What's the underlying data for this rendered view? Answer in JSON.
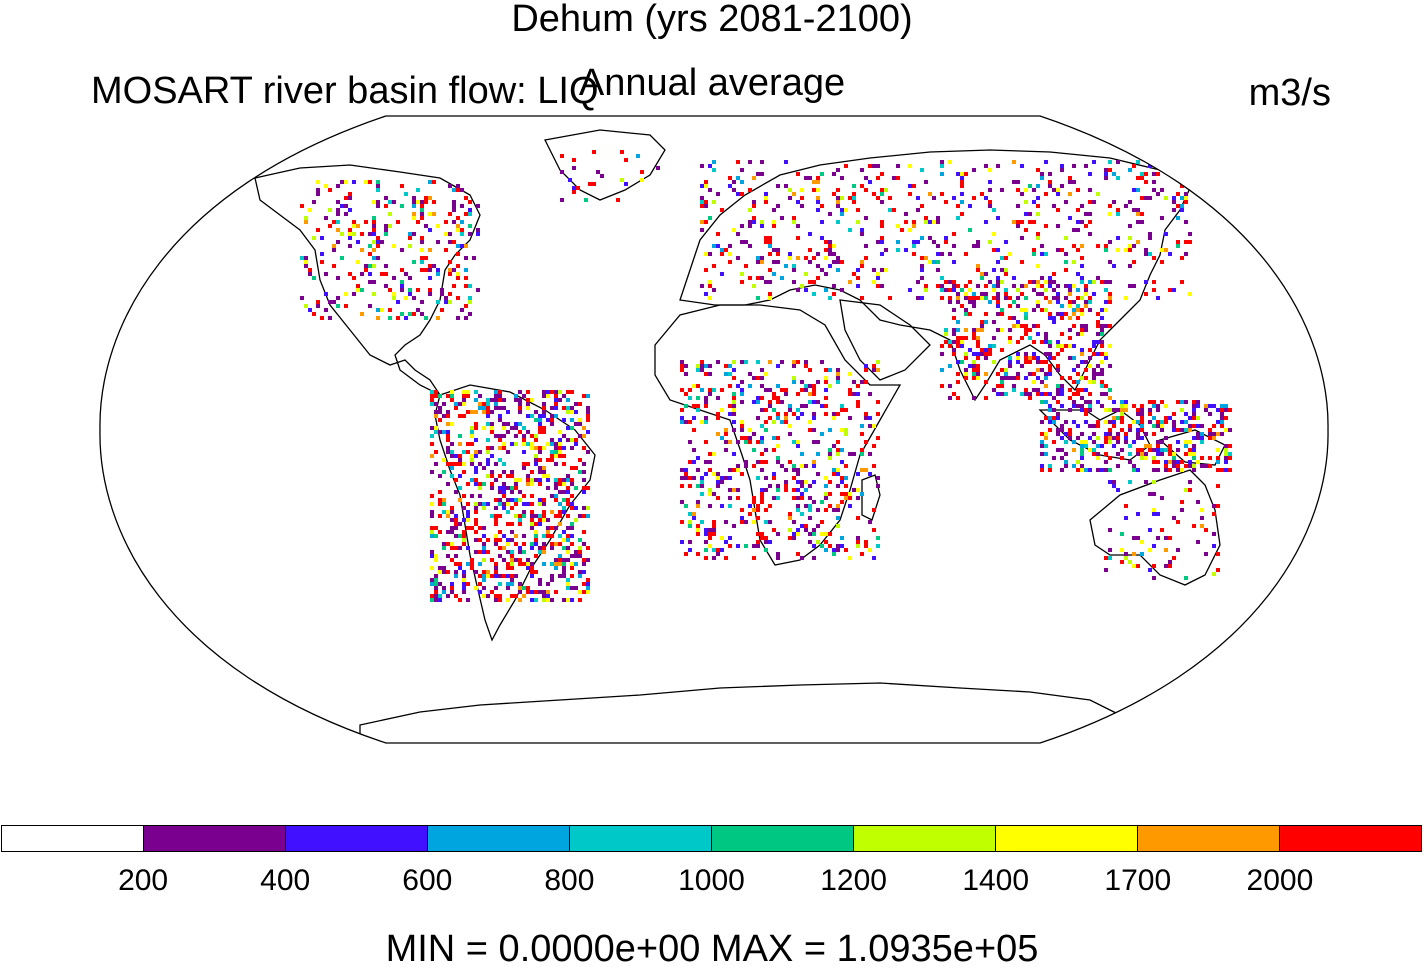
{
  "header": {
    "title": "Dehum (yrs 2081-2100)",
    "left_string": "MOSART river basin flow: LIQ",
    "center_string": "Annual average",
    "right_string": "m3/s"
  },
  "colorbar": {
    "colors": [
      "#ffffff",
      "#7a0090",
      "#4010ff",
      "#00a5e0",
      "#00c8c8",
      "#00c882",
      "#c0ff00",
      "#ffff00",
      "#ff9900",
      "#ff0000"
    ],
    "labels": [
      "200",
      "400",
      "600",
      "800",
      "1000",
      "1200",
      "1400",
      "1700",
      "2000"
    ]
  },
  "footer": {
    "minmax": "MIN = 0.0000e+00 MAX = 1.0935e+05"
  }
}
